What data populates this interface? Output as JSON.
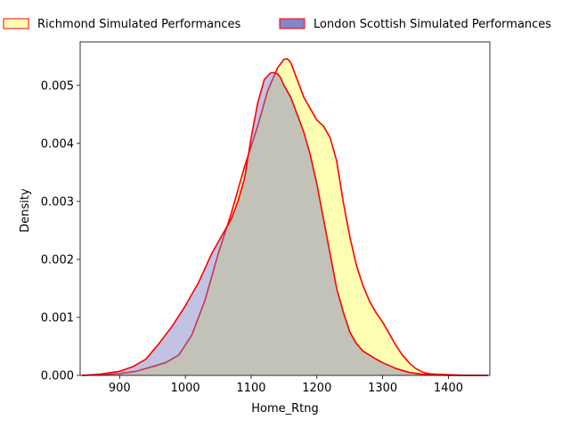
{
  "chart_data": {
    "type": "area",
    "title": "",
    "xlabel": "Home_Rtng",
    "ylabel": "Density",
    "xlim": [
      840,
      1463
    ],
    "ylim": [
      0,
      0.00575
    ],
    "xticks": [
      900,
      1000,
      1100,
      1200,
      1300,
      1400
    ],
    "xtick_labels": [
      "900",
      "1000",
      "1100",
      "1200",
      "1300",
      "1400"
    ],
    "yticks": [
      0,
      0.001,
      0.002,
      0.003,
      0.004,
      0.005
    ],
    "ytick_labels": [
      "0.000",
      "0.001",
      "0.002",
      "0.003",
      "0.004",
      "0.005"
    ],
    "grid": false,
    "legend_position": "top, above plot",
    "series": [
      {
        "name": "Richmond Simulated Performances",
        "fill_color": "#ffff99",
        "line_color": "#ff0000",
        "x": [
          843,
          870,
          900,
          925,
          950,
          970,
          990,
          1010,
          1030,
          1050,
          1070,
          1090,
          1110,
          1125,
          1140,
          1150,
          1155,
          1160,
          1170,
          1180,
          1190,
          1200,
          1210,
          1220,
          1230,
          1240,
          1250,
          1260,
          1270,
          1280,
          1290,
          1300,
          1310,
          1320,
          1330,
          1340,
          1350,
          1360,
          1370,
          1380,
          1400,
          1430,
          1460
        ],
        "y": [
          0.0,
          1e-05,
          3e-05,
          7e-05,
          0.00015,
          0.00022,
          0.00035,
          0.0007,
          0.0013,
          0.0021,
          0.0028,
          0.0036,
          0.0043,
          0.0049,
          0.0053,
          0.00545,
          0.00546,
          0.0054,
          0.0051,
          0.0048,
          0.0046,
          0.0044,
          0.0043,
          0.0041,
          0.0037,
          0.003,
          0.0024,
          0.0019,
          0.00155,
          0.00128,
          0.00108,
          0.00092,
          0.00072,
          0.00052,
          0.00035,
          0.00022,
          0.00012,
          6e-05,
          3e-05,
          2e-05,
          1e-05,
          0.0,
          0.0
        ]
      },
      {
        "name": "London Scottish Simulated Performances",
        "fill_color": "#7777c2",
        "line_color": "#ff0000",
        "x": [
          843,
          870,
          900,
          920,
          940,
          960,
          980,
          1000,
          1020,
          1040,
          1060,
          1070,
          1080,
          1090,
          1100,
          1110,
          1120,
          1130,
          1135,
          1140,
          1145,
          1150,
          1160,
          1170,
          1180,
          1190,
          1200,
          1210,
          1220,
          1230,
          1240,
          1250,
          1260,
          1270,
          1280,
          1290,
          1300,
          1320,
          1340,
          1360,
          1380,
          1400,
          1430,
          1460
        ],
        "y": [
          0.0,
          2e-05,
          7e-05,
          0.00015,
          0.00028,
          0.00055,
          0.00085,
          0.0012,
          0.0016,
          0.0021,
          0.0025,
          0.0027,
          0.003,
          0.0034,
          0.0041,
          0.0047,
          0.0051,
          0.00522,
          0.00522,
          0.0052,
          0.00513,
          0.005,
          0.0048,
          0.0045,
          0.0042,
          0.0038,
          0.0033,
          0.0027,
          0.0021,
          0.0015,
          0.0011,
          0.00075,
          0.00055,
          0.00042,
          0.00035,
          0.00028,
          0.00022,
          0.00012,
          5e-05,
          2e-05,
          1e-05,
          0.0,
          0.0,
          0.0
        ]
      }
    ]
  }
}
